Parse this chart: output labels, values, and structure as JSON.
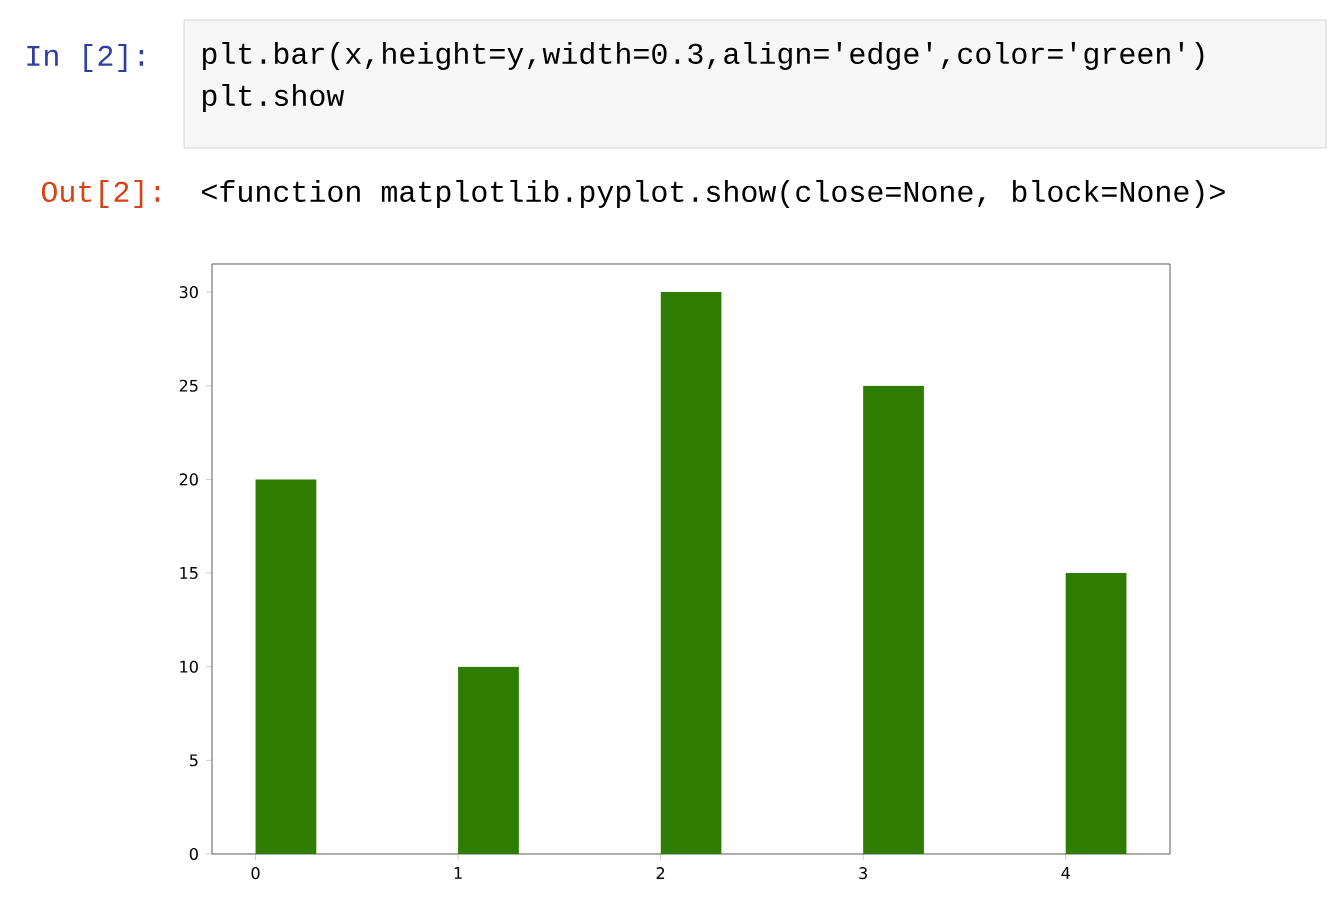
{
  "chart_data": {
    "type": "bar",
    "x": [
      0.15,
      1.15,
      2.15,
      3.15,
      4.15
    ],
    "values": [
      20,
      10,
      30,
      25,
      15
    ],
    "color": "#2e7d00",
    "xlim": [
      -0.215,
      4.515
    ],
    "ylim": [
      0,
      31.5
    ],
    "xticks": [
      0,
      1,
      2,
      3,
      4
    ],
    "yticks": [
      0,
      5,
      10,
      15,
      20,
      25,
      30
    ],
    "grid": false,
    "annotations": [
      "In  [2]:",
      "plt.bar(x,height=y,width=0.3,align='edge',color='green')",
      "plt.show",
      "Out[2]:",
      "<function matplotlib.pyplot.show(close=None, block=None)>"
    ]
  }
}
